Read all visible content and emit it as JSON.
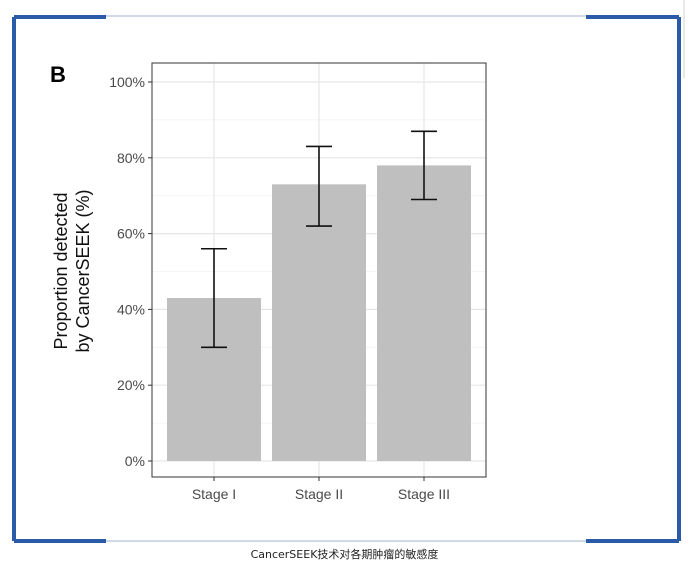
{
  "figure": {
    "panel_label": "B",
    "caption": "CancerSEEK技术对各期肿瘤的敏感度"
  },
  "colors": {
    "frame": "#2a5aa8",
    "bar": "#bfbfbf",
    "grid": "#e6e6e6",
    "error_bar": "#111111",
    "axis_text": "#4a4a4a"
  },
  "chart_data": {
    "type": "bar",
    "title": "",
    "xlabel": "",
    "ylabel": [
      "Proportion detected",
      "by CancerSEEK (%)"
    ],
    "categories": [
      "Stage I",
      "Stage II",
      "Stage III"
    ],
    "values": [
      43,
      73,
      78
    ],
    "error_low": [
      30,
      62,
      69
    ],
    "error_high": [
      56,
      83,
      87
    ],
    "ylim": [
      0,
      100
    ],
    "yticks": [
      0,
      20,
      40,
      60,
      80,
      100
    ],
    "ytick_labels": [
      "0%",
      "20%",
      "40%",
      "60%",
      "80%",
      "100%"
    ],
    "grid": true,
    "legend": "none"
  }
}
